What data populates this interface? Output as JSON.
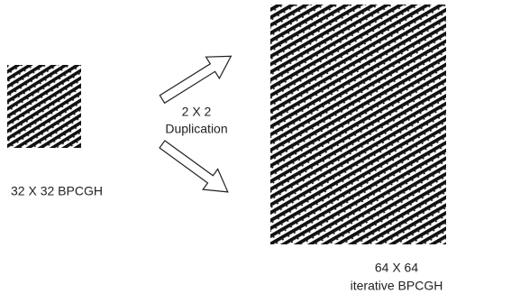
{
  "left": {
    "label": "32 X 32  BPCGH"
  },
  "middle": {
    "line1": "2 X 2",
    "line2": "Duplication"
  },
  "right": {
    "line1": "64 X 64",
    "line2": "iterative BPCGH"
  }
}
